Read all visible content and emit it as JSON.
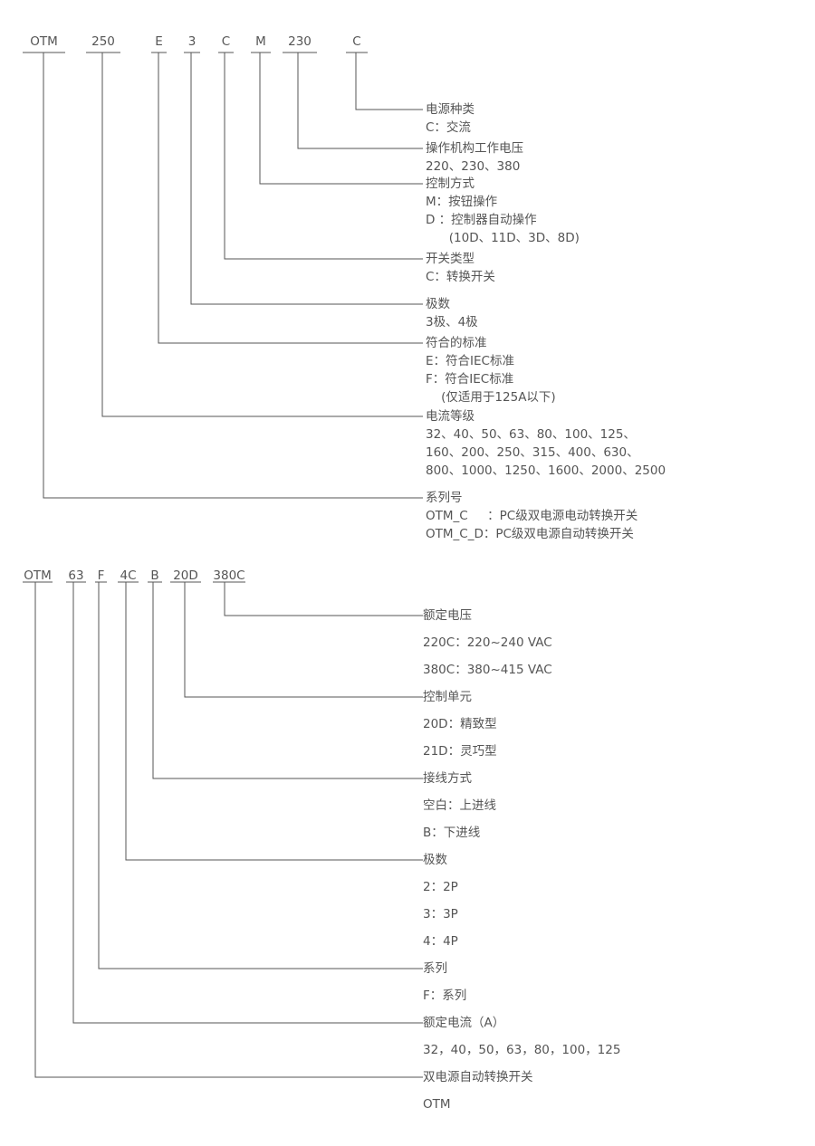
{
  "diagram1": {
    "codes": [
      "OTM",
      "250",
      "E",
      "3",
      "C",
      "M",
      "230",
      "C"
    ],
    "fields": [
      {
        "title": "电源种类",
        "lines": [
          "C：交流"
        ]
      },
      {
        "title": "操作机构工作电压",
        "lines": [
          "220、230、380"
        ]
      },
      {
        "title": "控制方式",
        "lines": [
          "M：按钮操作",
          "D ：控制器自动操作",
          "      (10D、11D、3D、8D)"
        ]
      },
      {
        "title": "开关类型",
        "lines": [
          "C：转换开关"
        ]
      },
      {
        "title": "极数",
        "lines": [
          "3极、4极"
        ]
      },
      {
        "title": "符合的标准",
        "lines": [
          "E：符合IEC标准",
          "F：符合IEC标准",
          "    (仅适用于125A以下)"
        ]
      },
      {
        "title": "电流等级",
        "lines": [
          "32、40、50、63、80、100、125、",
          "160、200、250、315、400、630、",
          "800、1000、1250、1600、2000、2500"
        ]
      },
      {
        "title": "系列号",
        "lines": [
          "OTM_C     ：PC级双电源电动转换开关",
          "OTM_C_D：PC级双电源自动转换开关"
        ]
      }
    ]
  },
  "diagram2": {
    "codes": [
      "OTM",
      "63",
      "F",
      "4C",
      "B",
      "20D",
      "380C"
    ],
    "fields": [
      {
        "title": "额定电压",
        "lines": [
          "220C：220~240 VAC",
          "380C：380~415 VAC"
        ]
      },
      {
        "title": "控制单元",
        "lines": [
          "20D：精致型",
          "21D：灵巧型"
        ]
      },
      {
        "title": "接线方式",
        "lines": [
          "空白：上进线",
          "B：下进线"
        ]
      },
      {
        "title": "极数",
        "lines": [
          "2：2P",
          "3：3P",
          "4：4P"
        ]
      },
      {
        "title": "系列",
        "lines": [
          "F：系列"
        ]
      },
      {
        "title": "额定电流（A）",
        "lines": [
          "32，40，50，63，80，100，125"
        ]
      },
      {
        "title": "双电源自动转换开关",
        "lines": [
          "OTM"
        ]
      }
    ]
  },
  "colors": {
    "text": "#555555",
    "line": "#555555",
    "background": "#ffffff"
  }
}
